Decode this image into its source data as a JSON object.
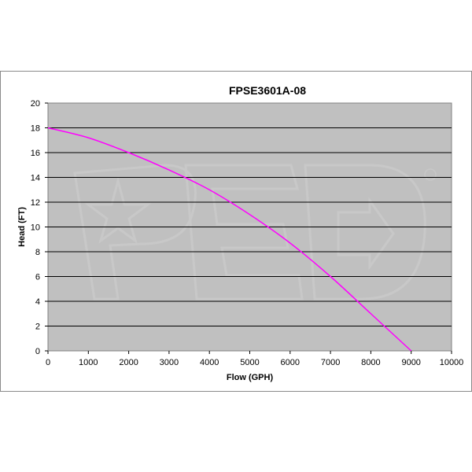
{
  "chart_data": {
    "type": "line",
    "title": "FPSE3601A-08",
    "xlabel": "Flow (GPH)",
    "ylabel": "Head (FT)",
    "xlim": [
      0,
      10000
    ],
    "ylim": [
      0,
      20
    ],
    "x_ticks": [
      0,
      1000,
      2000,
      3000,
      4000,
      5000,
      6000,
      7000,
      8000,
      9000,
      10000
    ],
    "y_ticks": [
      0,
      2,
      4,
      6,
      8,
      10,
      12,
      14,
      16,
      18,
      20
    ],
    "grid": "horizontal",
    "legend": "none",
    "plot_background": "#c0c0c0",
    "series": [
      {
        "color": "#ff00ff",
        "x": [
          0,
          1000,
          2000,
          3000,
          4000,
          5000,
          6000,
          7000,
          8000,
          9000
        ],
        "y": [
          18,
          17.2,
          16,
          14.6,
          13,
          11,
          8.7,
          6,
          3,
          0
        ]
      }
    ]
  },
  "watermark": "PSE"
}
